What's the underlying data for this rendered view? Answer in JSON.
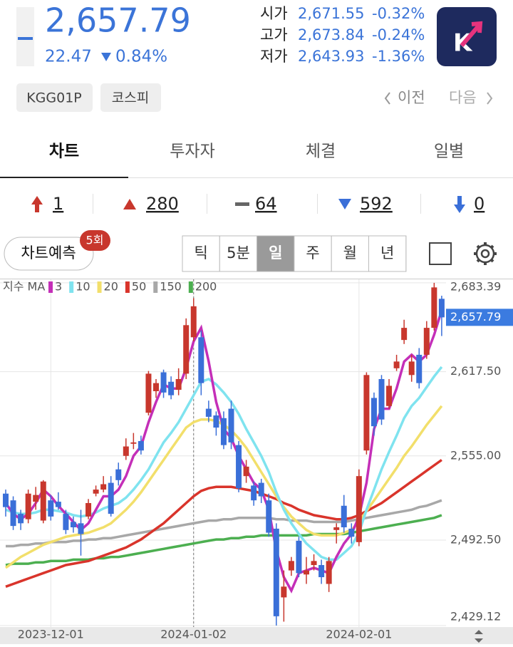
{
  "header": {
    "price": "2,657.79",
    "change": "22.47",
    "change_pct": "0.84%",
    "quote": [
      {
        "label": "시가",
        "value": "2,671.55",
        "pct": "-0.32%"
      },
      {
        "label": "고가",
        "value": "2,673.84",
        "pct": "-0.24%"
      },
      {
        "label": "저가",
        "value": "2,643.93",
        "pct": "-1.36%"
      }
    ],
    "tags": [
      "KGG01P",
      "코스피"
    ],
    "prev": "이전",
    "next": "다음"
  },
  "tabs": [
    "차트",
    "투자자",
    "체결",
    "일별"
  ],
  "counts": [
    "1",
    "280",
    "64",
    "592",
    "0"
  ],
  "toolbar": {
    "predict": "차트예측",
    "badge": "5회",
    "periods": [
      "틱",
      "5분",
      "일",
      "주",
      "월",
      "년"
    ]
  },
  "chart_data": {
    "type": "candlestick",
    "legend_title": "지수 MA",
    "categories": [
      null,
      null,
      null,
      null,
      null,
      null,
      "2023-12-01",
      null,
      null,
      null,
      null,
      null,
      null,
      null,
      null,
      null,
      null,
      null,
      null,
      null,
      null,
      null,
      null,
      null,
      null,
      "2024-01-02",
      null,
      null,
      null,
      null,
      null,
      null,
      null,
      null,
      null,
      null,
      null,
      null,
      null,
      null,
      null,
      null,
      null,
      null,
      null,
      null,
      null,
      "2024-02-01",
      null,
      null,
      null,
      null,
      null,
      null,
      null,
      null,
      null,
      null,
      null
    ],
    "open": [
      2527,
      2522,
      2512,
      2508,
      2521,
      2507,
      2522,
      2521,
      2512,
      2506,
      2505,
      2510,
      2527,
      2530,
      2535,
      2545,
      2555,
      2564,
      2566,
      2587,
      2603,
      2617,
      2610,
      2604,
      2616,
      2643,
      2643,
      2590,
      2585,
      2583,
      2590,
      2563,
      2540,
      2533,
      2535,
      2522,
      2501,
      2450,
      2470,
      2492,
      2467,
      2474,
      2474,
      2460,
      2500,
      2518,
      2501,
      2491,
      2559,
      2598,
      2612,
      2592,
      2620,
      2641,
      2615,
      2630,
      2630,
      2650,
      2671.55
    ],
    "high": [
      2530,
      2525,
      2515,
      2530,
      2532,
      2537,
      2526,
      2528,
      2515,
      2510,
      2515,
      2523,
      2533,
      2540,
      2540,
      2550,
      2568,
      2572,
      2570,
      2618,
      2612,
      2619,
      2614,
      2620,
      2657,
      2672,
      2648,
      2596,
      2588,
      2588,
      2596,
      2566,
      2552,
      2536,
      2538,
      2527,
      2505,
      2470,
      2480,
      2495,
      2480,
      2482,
      2478,
      2480,
      2505,
      2526,
      2505,
      2545,
      2617,
      2602,
      2615,
      2612,
      2630,
      2656,
      2630,
      2635,
      2655,
      2683.39,
      2673.84
    ],
    "low": [
      2510,
      2500,
      2500,
      2505,
      2515,
      2505,
      2507,
      2515,
      2497,
      2498,
      2481,
      2508,
      2525,
      2528,
      2510,
      2533,
      2552,
      2560,
      2556,
      2585,
      2598,
      2598,
      2597,
      2600,
      2612,
      2640,
      2600,
      2580,
      2570,
      2560,
      2560,
      2528,
      2535,
      2518,
      2520,
      2495,
      2429.12,
      2432,
      2466,
      2465,
      2460,
      2470,
      2460,
      2454,
      2490,
      2498,
      2490,
      2488,
      2556,
      2570,
      2578,
      2590,
      2618,
      2638,
      2610,
      2605,
      2627,
      2648,
      2643.93
    ],
    "close": [
      2517,
      2503,
      2505,
      2527,
      2526,
      2536,
      2510,
      2517,
      2500,
      2502,
      2497,
      2520,
      2530,
      2534,
      2512,
      2537,
      2562,
      2565,
      2559,
      2616,
      2609,
      2602,
      2600,
      2612,
      2652,
      2666,
      2609,
      2584,
      2576,
      2563,
      2565,
      2531,
      2547,
      2522,
      2525,
      2498,
      2436,
      2458,
      2477,
      2468,
      2470,
      2477,
      2465,
      2477,
      2502,
      2502,
      2495,
      2540,
      2615,
      2577,
      2582,
      2607,
      2625,
      2650,
      2625,
      2609,
      2650,
      2680,
      2657.79
    ],
    "up_color": "#c8372d",
    "down_color": "#3a6fd8",
    "series": [
      {
        "name": "3",
        "color": "#c42fb8",
        "values": [
          2520,
          2512,
          2508,
          2512,
          2520,
          2530,
          2525,
          2518,
          2512,
          2506,
          2500,
          2505,
          2515,
          2525,
          2525,
          2530,
          2540,
          2555,
          2562,
          2580,
          2595,
          2608,
          2605,
          2605,
          2620,
          2640,
          2650,
          2625,
          2595,
          2575,
          2568,
          2555,
          2545,
          2535,
          2530,
          2515,
          2485,
          2465,
          2455,
          2468,
          2470,
          2472,
          2470,
          2468,
          2480,
          2490,
          2497,
          2510,
          2535,
          2575,
          2590,
          2590,
          2605,
          2625,
          2630,
          2625,
          2630,
          2645,
          2663
        ]
      },
      {
        "name": "10",
        "color": "#7fe3ef",
        "values": [
          2515,
          2513,
          2512,
          2512,
          2513,
          2515,
          2515,
          2514,
          2513,
          2511,
          2510,
          2511,
          2513,
          2516,
          2518,
          2520,
          2524,
          2530,
          2537,
          2545,
          2555,
          2565,
          2572,
          2580,
          2590,
          2600,
          2610,
          2612,
          2608,
          2602,
          2595,
          2586,
          2575,
          2565,
          2555,
          2543,
          2528,
          2515,
          2505,
          2497,
          2490,
          2485,
          2480,
          2478,
          2478,
          2483,
          2488,
          2498,
          2515,
          2530,
          2545,
          2558,
          2570,
          2583,
          2592,
          2598,
          2606,
          2614,
          2621
        ]
      },
      {
        "name": "20",
        "color": "#f2df6b",
        "values": [
          2472,
          2476,
          2480,
          2483,
          2486,
          2489,
          2491,
          2493,
          2495,
          2496,
          2497,
          2498,
          2500,
          2502,
          2505,
          2510,
          2515,
          2521,
          2528,
          2536,
          2544,
          2552,
          2560,
          2568,
          2576,
          2580,
          2582,
          2582,
          2581,
          2578,
          2574,
          2568,
          2561,
          2552,
          2543,
          2534,
          2525,
          2517,
          2510,
          2505,
          2500,
          2497,
          2496,
          2496,
          2496,
          2498,
          2500,
          2506,
          2514,
          2522,
          2530,
          2538,
          2546,
          2555,
          2562,
          2570,
          2578,
          2585,
          2592
        ]
      },
      {
        "name": "50",
        "color": "#d9342b",
        "values": [
          2458,
          2460,
          2462,
          2464,
          2466,
          2468,
          2470,
          2472,
          2474,
          2475,
          2476,
          2477,
          2479,
          2481,
          2483,
          2485,
          2487,
          2490,
          2493,
          2497,
          2501,
          2505,
          2510,
          2515,
          2520,
          2525,
          2529,
          2531,
          2532,
          2532,
          2532,
          2531,
          2530,
          2529,
          2527,
          2525,
          2523,
          2520,
          2518,
          2515,
          2513,
          2511,
          2510,
          2509,
          2508,
          2508,
          2509,
          2511,
          2514,
          2517,
          2520,
          2524,
          2528,
          2532,
          2536,
          2540,
          2544,
          2548,
          2552
        ]
      },
      {
        "name": "150",
        "color": "#a8a8a8",
        "values": [
          2488,
          2488,
          2489,
          2489,
          2490,
          2490,
          2491,
          2491,
          2491,
          2492,
          2492,
          2493,
          2493,
          2494,
          2494,
          2495,
          2496,
          2497,
          2498,
          2499,
          2500,
          2501,
          2502,
          2503,
          2504,
          2505,
          2506,
          2507,
          2507,
          2508,
          2508,
          2509,
          2509,
          2509,
          2509,
          2509,
          2508,
          2508,
          2507,
          2507,
          2507,
          2506,
          2506,
          2506,
          2506,
          2506,
          2507,
          2508,
          2509,
          2510,
          2511,
          2512,
          2513,
          2514,
          2515,
          2517,
          2518,
          2520,
          2522
        ]
      },
      {
        "name": "200",
        "color": "#4caf50",
        "values": [
          2474,
          2475,
          2475,
          2475,
          2476,
          2476,
          2477,
          2477,
          2477,
          2478,
          2478,
          2478,
          2479,
          2479,
          2480,
          2480,
          2481,
          2482,
          2483,
          2484,
          2485,
          2486,
          2487,
          2488,
          2489,
          2490,
          2491,
          2492,
          2493,
          2493,
          2494,
          2494,
          2495,
          2495,
          2496,
          2496,
          2496,
          2496,
          2496,
          2496,
          2496,
          2497,
          2497,
          2497,
          2497,
          2497,
          2498,
          2499,
          2500,
          2501,
          2502,
          2503,
          2504,
          2505,
          2506,
          2507,
          2508,
          2509,
          2511
        ]
      }
    ],
    "ylim": [
      2428,
      2686
    ],
    "yticks": [
      {
        "value": 2683.39,
        "label": "2,683.39"
      },
      {
        "value": 2617.5,
        "label": "2,617.50"
      },
      {
        "value": 2555,
        "label": "2,555.00"
      },
      {
        "value": 2492.5,
        "label": "2,492.50"
      },
      {
        "value": 2429.12,
        "label": "2,429.12"
      }
    ],
    "price_marker": {
      "value": 2657.79,
      "label": "2,657.79"
    },
    "grid": true
  }
}
